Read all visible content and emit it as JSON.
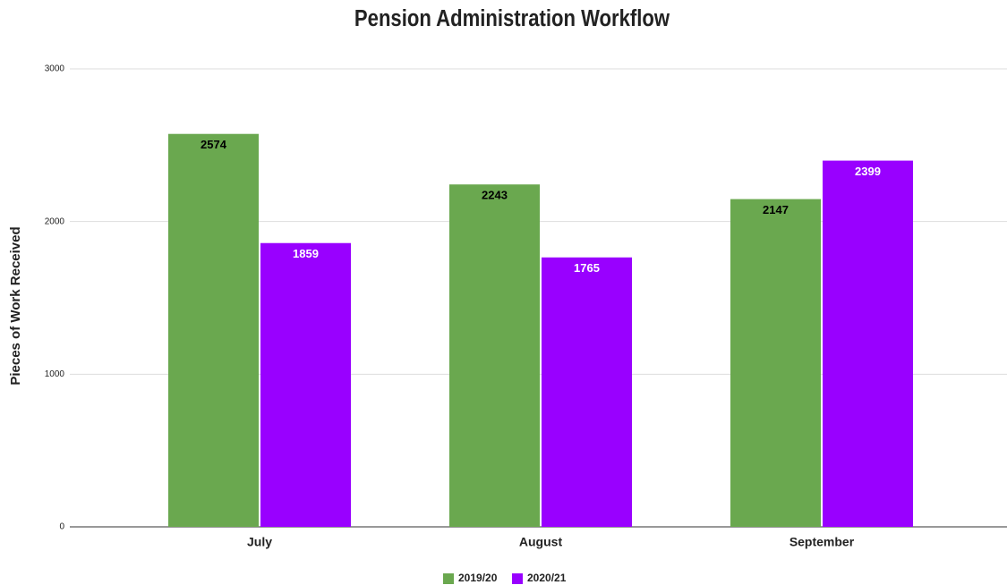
{
  "chart_data": {
    "type": "bar",
    "title": "Pension Administration Workflow",
    "y_label": "Pieces of Work Received",
    "categories": [
      "July",
      "August",
      "September"
    ],
    "series": [
      {
        "name": "2019/20",
        "color": "#6aa84f",
        "label_color": "#000000",
        "values": [
          2574,
          2243,
          2147
        ]
      },
      {
        "name": "2020/21",
        "color": "#9900ff",
        "label_color": "#ffffff",
        "values": [
          1859,
          1765,
          2399
        ]
      }
    ],
    "ylim": [
      0,
      3000
    ],
    "yticks": [
      0,
      1000,
      2000,
      3000
    ],
    "grid": true,
    "legend": "bottom"
  }
}
